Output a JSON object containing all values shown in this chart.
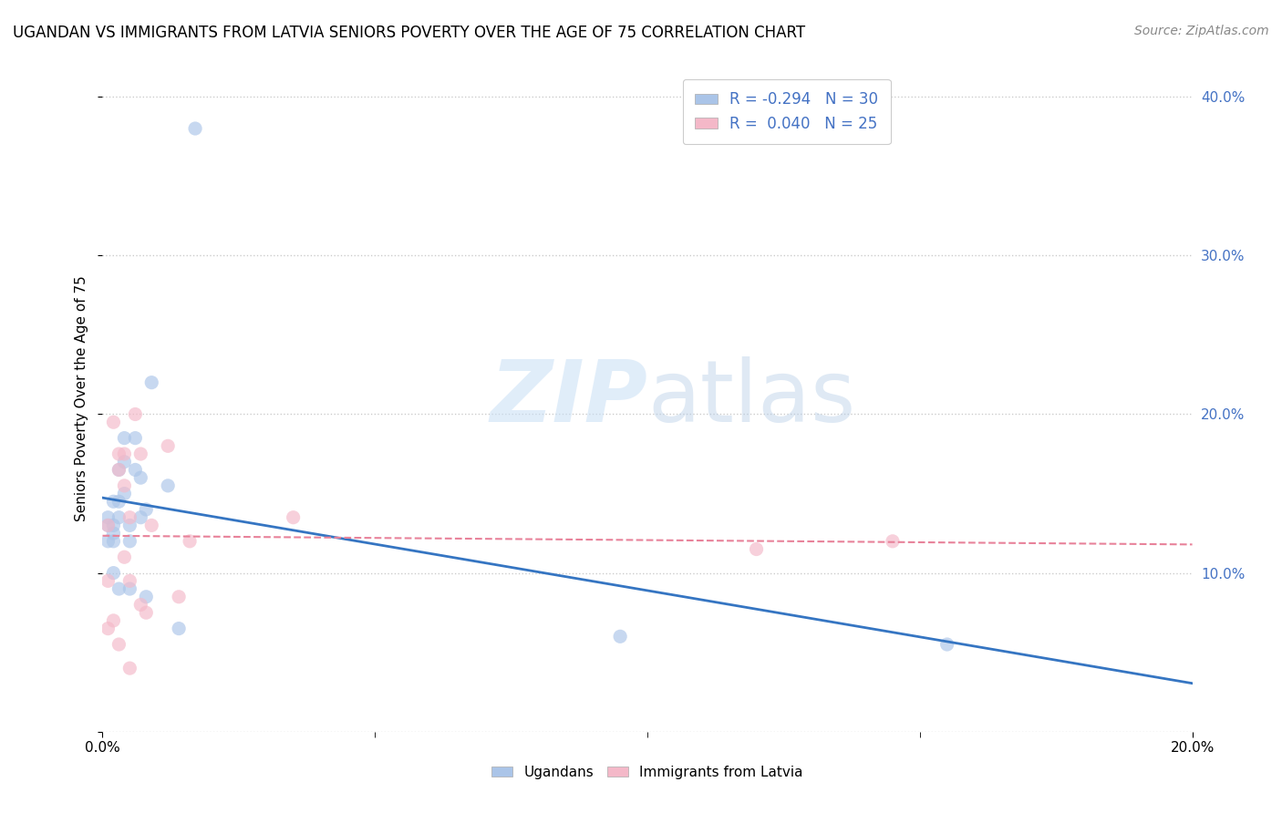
{
  "title": "UGANDAN VS IMMIGRANTS FROM LATVIA SENIORS POVERTY OVER THE AGE OF 75 CORRELATION CHART",
  "source": "Source: ZipAtlas.com",
  "ylabel": "Seniors Poverty Over the Age of 75",
  "xlim": [
    0,
    0.2
  ],
  "ylim": [
    0,
    0.42
  ],
  "background_color": "#ffffff",
  "grid_color": "#cccccc",
  "ugandan_color": "#aac4e8",
  "latvia_color": "#f4b8c8",
  "ugandan_line_color": "#3575c2",
  "latvia_line_color": "#e8829a",
  "legend_r_ugandan": "R = -0.294",
  "legend_n_ugandan": "N = 30",
  "legend_r_latvia": "R =  0.040",
  "legend_n_latvia": "N = 25",
  "ugandan_label": "Ugandans",
  "latvia_label": "Immigrants from Latvia",
  "ugandan_x": [
    0.001,
    0.001,
    0.001,
    0.002,
    0.002,
    0.002,
    0.002,
    0.002,
    0.003,
    0.003,
    0.003,
    0.003,
    0.004,
    0.004,
    0.004,
    0.005,
    0.005,
    0.005,
    0.006,
    0.006,
    0.007,
    0.007,
    0.008,
    0.008,
    0.009,
    0.012,
    0.014,
    0.017,
    0.095,
    0.155
  ],
  "ugandan_y": [
    0.135,
    0.13,
    0.12,
    0.145,
    0.13,
    0.125,
    0.12,
    0.1,
    0.165,
    0.145,
    0.135,
    0.09,
    0.185,
    0.17,
    0.15,
    0.13,
    0.12,
    0.09,
    0.185,
    0.165,
    0.16,
    0.135,
    0.14,
    0.085,
    0.22,
    0.155,
    0.065,
    0.38,
    0.06,
    0.055
  ],
  "latvia_x": [
    0.001,
    0.001,
    0.001,
    0.002,
    0.002,
    0.003,
    0.003,
    0.003,
    0.004,
    0.004,
    0.004,
    0.005,
    0.005,
    0.005,
    0.006,
    0.007,
    0.007,
    0.008,
    0.009,
    0.012,
    0.014,
    0.016,
    0.035,
    0.12,
    0.145
  ],
  "latvia_y": [
    0.13,
    0.095,
    0.065,
    0.195,
    0.07,
    0.175,
    0.165,
    0.055,
    0.175,
    0.155,
    0.11,
    0.135,
    0.095,
    0.04,
    0.2,
    0.175,
    0.08,
    0.075,
    0.13,
    0.18,
    0.085,
    0.12,
    0.135,
    0.115,
    0.12
  ],
  "marker_size": 120,
  "marker_alpha": 0.65,
  "title_fontsize": 12,
  "label_fontsize": 11,
  "tick_fontsize": 11,
  "source_fontsize": 10,
  "right_tick_color": "#4472c4",
  "y_ticks": [
    0.0,
    0.1,
    0.2,
    0.3,
    0.4
  ],
  "y_tick_labels": [
    "",
    "10.0%",
    "20.0%",
    "30.0%",
    "40.0%"
  ]
}
